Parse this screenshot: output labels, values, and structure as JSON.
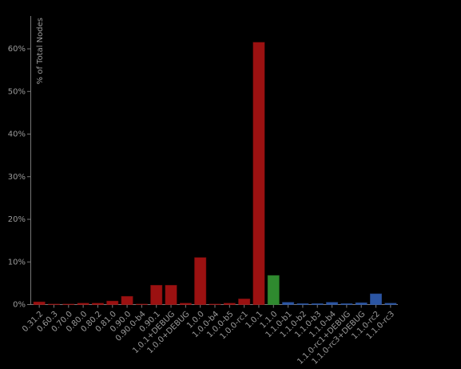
{
  "chart_data": {
    "type": "bar",
    "y_label": "% of Total Nodes",
    "categories": [
      "0.31.2",
      "0.60.3",
      "0.70.0",
      "0.80.0",
      "0.80.2",
      "0.81.0",
      "0.90.0",
      "0.90.0-b4",
      "0.90.1",
      "1.0.1+DEBUG",
      "1.0.0+DEBUG",
      "1.0.0",
      "1.0.0-b4",
      "1.0.0-b5",
      "1.0.0-rc1",
      "1.0.1",
      "1.1.0",
      "1.1.0-b1",
      "1.1.0-b2",
      "1.1.0-b3",
      "1.1.0-b4",
      "1.1.0-rc1+DEBUG",
      "1.1.0-rc3+DEBUG",
      "1.1.0-rc2",
      "1.1.0-rc3"
    ],
    "values": [
      0.6,
      0.1,
      0.1,
      0.3,
      0.3,
      0.8,
      1.9,
      0.1,
      4.5,
      4.5,
      0.3,
      11,
      0.1,
      0.3,
      1.3,
      61.5,
      6.8,
      0.5,
      0.2,
      0.2,
      0.5,
      0.2,
      0.4,
      2.5,
      0.3
    ],
    "colors": [
      "#9b1111",
      "#9b1111",
      "#9b1111",
      "#9b1111",
      "#9b1111",
      "#9b1111",
      "#9b1111",
      "#9b1111",
      "#9b1111",
      "#9b1111",
      "#9b1111",
      "#9b1111",
      "#9b1111",
      "#9b1111",
      "#9b1111",
      "#9b1111",
      "#2f8a2f",
      "#2b55a3",
      "#2b55a3",
      "#2b55a3",
      "#2b55a3",
      "#2b55a3",
      "#2b55a3",
      "#2b55a3",
      "#2b55a3"
    ],
    "ylim": [
      0,
      67.7
    ],
    "yticks": [
      {
        "value": 0,
        "label": "0%"
      },
      {
        "value": 10,
        "label": "10%"
      },
      {
        "value": 20,
        "label": "20%"
      },
      {
        "value": 30,
        "label": "30%"
      },
      {
        "value": 40,
        "label": "40%"
      },
      {
        "value": 50,
        "label": "50%"
      },
      {
        "value": 60,
        "label": "60%"
      }
    ],
    "grid": false
  }
}
